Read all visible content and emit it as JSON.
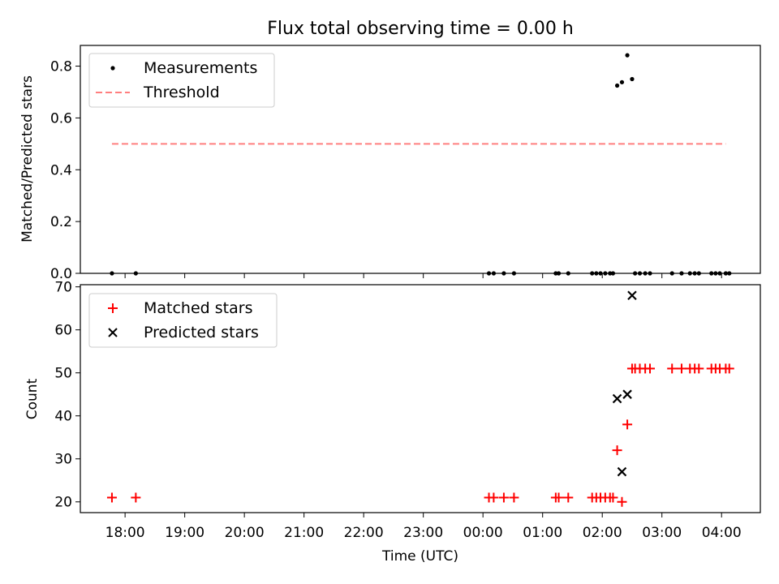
{
  "chart_data": [
    {
      "type": "scatter",
      "title": "Flux total observing time = 0.00 h",
      "ylabel": "Matched/Predicted stars",
      "xlabel": "",
      "ylim": [
        0,
        0.88
      ],
      "yticks": [
        0.0,
        0.2,
        0.4,
        0.6,
        0.8
      ],
      "ytick_labels": [
        "0.0",
        "0.2",
        "0.4",
        "0.6",
        "0.8"
      ],
      "legend_position": "top-left",
      "series": [
        {
          "name": "Measurements",
          "marker": "dot",
          "color": "#000000",
          "points": [
            [
              17.78,
              0
            ],
            [
              18.18,
              0
            ],
            [
              0.1,
              0
            ],
            [
              0.18,
              0
            ],
            [
              0.35,
              0
            ],
            [
              0.52,
              0
            ],
            [
              1.22,
              0
            ],
            [
              1.27,
              0
            ],
            [
              1.43,
              0
            ],
            [
              1.83,
              0
            ],
            [
              1.9,
              0
            ],
            [
              1.97,
              0
            ],
            [
              2.05,
              0
            ],
            [
              2.13,
              0
            ],
            [
              2.18,
              0
            ],
            [
              2.25,
              0.725
            ],
            [
              2.33,
              0.738
            ],
            [
              2.42,
              0.842
            ],
            [
              2.5,
              0.75
            ],
            [
              2.55,
              0
            ],
            [
              2.63,
              0
            ],
            [
              2.72,
              0
            ],
            [
              2.8,
              0
            ],
            [
              3.17,
              0
            ],
            [
              3.33,
              0
            ],
            [
              3.47,
              0
            ],
            [
              3.55,
              0
            ],
            [
              3.62,
              0
            ],
            [
              3.83,
              0
            ],
            [
              3.9,
              0
            ],
            [
              3.97,
              0
            ],
            [
              4.07,
              0
            ],
            [
              4.13,
              0
            ]
          ]
        },
        {
          "name": "Threshold",
          "marker": "dashed-line",
          "color": "#ff7f7f",
          "points": [
            [
              17.78,
              0.5
            ],
            [
              4.07,
              0.5
            ]
          ]
        }
      ]
    },
    {
      "type": "scatter",
      "title": "",
      "ylabel": "Count",
      "xlabel": "Time (UTC)",
      "ylim": [
        17.5,
        70.5
      ],
      "yticks": [
        20,
        30,
        40,
        50,
        60,
        70
      ],
      "ytick_labels": [
        "20",
        "30",
        "40",
        "50",
        "60",
        "70"
      ],
      "xlim_hours": [
        17.25,
        4.65
      ],
      "xticks": [
        "18:00",
        "19:00",
        "20:00",
        "21:00",
        "22:00",
        "23:00",
        "00:00",
        "01:00",
        "02:00",
        "03:00",
        "04:00"
      ],
      "legend_position": "top-left",
      "series": [
        {
          "name": "Matched stars",
          "marker": "plus",
          "color": "#ff0000",
          "points": [
            [
              17.78,
              21
            ],
            [
              18.18,
              21
            ],
            [
              0.1,
              21
            ],
            [
              0.18,
              21
            ],
            [
              0.35,
              21
            ],
            [
              0.52,
              21
            ],
            [
              1.22,
              21
            ],
            [
              1.27,
              21
            ],
            [
              1.43,
              21
            ],
            [
              1.83,
              21
            ],
            [
              1.9,
              21
            ],
            [
              1.97,
              21
            ],
            [
              2.05,
              21
            ],
            [
              2.13,
              21
            ],
            [
              2.18,
              21
            ],
            [
              2.25,
              32
            ],
            [
              2.33,
              20
            ],
            [
              2.42,
              38
            ],
            [
              2.5,
              51
            ],
            [
              2.55,
              51
            ],
            [
              2.63,
              51
            ],
            [
              2.72,
              51
            ],
            [
              2.8,
              51
            ],
            [
              3.17,
              51
            ],
            [
              3.33,
              51
            ],
            [
              3.47,
              51
            ],
            [
              3.55,
              51
            ],
            [
              3.62,
              51
            ],
            [
              3.83,
              51
            ],
            [
              3.9,
              51
            ],
            [
              3.97,
              51
            ],
            [
              4.07,
              51
            ],
            [
              4.13,
              51
            ]
          ]
        },
        {
          "name": "Predicted stars",
          "marker": "x",
          "color": "#000000",
          "points": [
            [
              2.25,
              44
            ],
            [
              2.33,
              27
            ],
            [
              2.42,
              45
            ],
            [
              2.5,
              68
            ]
          ]
        }
      ]
    }
  ]
}
